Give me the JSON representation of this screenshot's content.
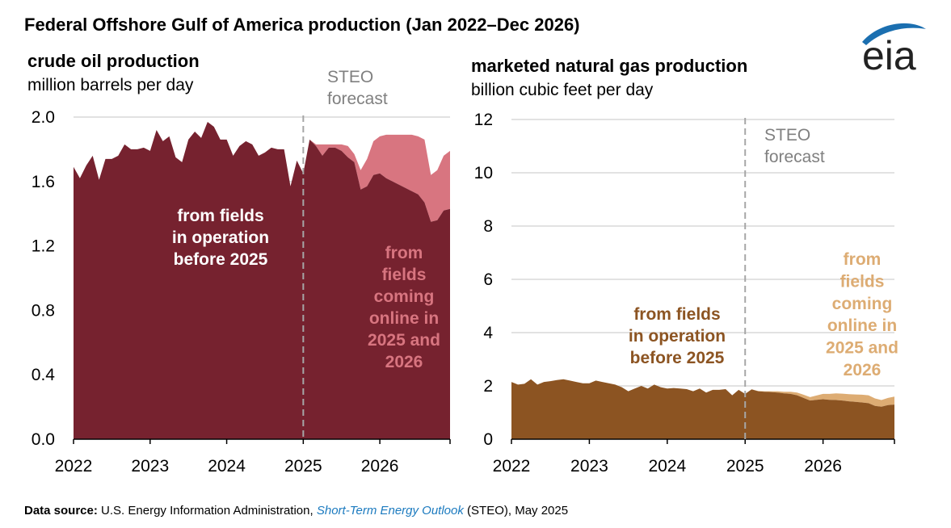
{
  "title": "Federal Offshore Gulf of America production (Jan 2022–Dec 2026)",
  "logo": {
    "text": "eia",
    "color": "#1b6fb0"
  },
  "source": {
    "label": "Data source:",
    "text": "U.S. Energy Information Administration,",
    "link": "Short-Term Energy Outlook",
    "suffix": "(STEO), May 2025"
  },
  "colors": {
    "oil_existing": "#76222f",
    "oil_new": "#d87580",
    "gas_existing": "#8c5422",
    "gas_new": "#ddac73",
    "gridline": "#d9d9d9",
    "divider": "#a6a6a6",
    "forecast_text": "#808080"
  },
  "chart_data": [
    {
      "type": "area",
      "stacked": true,
      "title": "crude oil production",
      "subtitle": "million barrels per day",
      "ylim": [
        0,
        2
      ],
      "yticks": [
        "0.0",
        "0.4",
        "0.8",
        "1.2",
        "1.6",
        "2.0"
      ],
      "ytick_values": [
        0,
        0.4,
        0.8,
        1.2,
        1.6,
        2.0
      ],
      "xticks": [
        "2022",
        "2023",
        "2024",
        "2025",
        "2026"
      ],
      "x_start": "2022-01",
      "x_end": "2026-12",
      "forecast_start_label": "2025",
      "forecast_label_line1": "STEO",
      "forecast_label_line2": "forecast",
      "series": [
        {
          "name": "from fields in operation before 2025",
          "label_lines": [
            "from fields",
            "in operation",
            "before 2025"
          ],
          "values": [
            1.69,
            1.62,
            1.7,
            1.76,
            1.61,
            1.74,
            1.74,
            1.76,
            1.83,
            1.8,
            1.8,
            1.81,
            1.79,
            1.92,
            1.85,
            1.88,
            1.75,
            1.72,
            1.86,
            1.91,
            1.87,
            1.97,
            1.94,
            1.86,
            1.86,
            1.76,
            1.82,
            1.85,
            1.83,
            1.76,
            1.78,
            1.81,
            1.8,
            1.8,
            1.57,
            1.73,
            1.65,
            1.86,
            1.82,
            1.76,
            1.81,
            1.81,
            1.79,
            1.75,
            1.72,
            1.55,
            1.57,
            1.64,
            1.65,
            1.62,
            1.6,
            1.58,
            1.56,
            1.54,
            1.52,
            1.47,
            1.35,
            1.36,
            1.42,
            1.43
          ]
        },
        {
          "name": "from fields coming online in 2025 and 2026",
          "label_lines": [
            "from",
            "fields",
            "coming",
            "online in",
            "2025 and",
            "2026"
          ],
          "values": [
            0,
            0,
            0,
            0,
            0,
            0,
            0,
            0,
            0,
            0,
            0,
            0,
            0,
            0,
            0,
            0,
            0,
            0,
            0,
            0,
            0,
            0,
            0,
            0,
            0,
            0,
            0,
            0,
            0,
            0,
            0,
            0,
            0,
            0,
            0,
            0,
            0,
            0,
            0.01,
            0.07,
            0.02,
            0.02,
            0.04,
            0.07,
            0.05,
            0.12,
            0.17,
            0.21,
            0.23,
            0.27,
            0.29,
            0.31,
            0.33,
            0.35,
            0.36,
            0.39,
            0.29,
            0.31,
            0.34,
            0.36
          ]
        }
      ]
    },
    {
      "type": "area",
      "stacked": true,
      "title": "marketed natural gas production",
      "subtitle": "billion cubic feet per day",
      "ylim": [
        0,
        12
      ],
      "yticks": [
        "0",
        "2",
        "4",
        "6",
        "8",
        "10",
        "12"
      ],
      "ytick_values": [
        0,
        2,
        4,
        6,
        8,
        10,
        12
      ],
      "xticks": [
        "2022",
        "2023",
        "2024",
        "2025",
        "2026"
      ],
      "x_start": "2022-01",
      "x_end": "2026-12",
      "forecast_start_label": "2025",
      "forecast_label_line1": "STEO",
      "forecast_label_line2": "forecast",
      "series": [
        {
          "name": "from fields in operation before 2025",
          "label_lines": [
            "from fields",
            "in operation",
            "before 2025"
          ],
          "values": [
            2.15,
            2.05,
            2.08,
            2.25,
            2.05,
            2.15,
            2.18,
            2.22,
            2.25,
            2.2,
            2.15,
            2.1,
            2.1,
            2.2,
            2.15,
            2.1,
            2.05,
            1.95,
            1.8,
            1.9,
            2.0,
            1.9,
            2.05,
            1.95,
            1.9,
            1.92,
            1.9,
            1.88,
            1.8,
            1.9,
            1.75,
            1.85,
            1.85,
            1.88,
            1.65,
            1.85,
            1.7,
            1.87,
            1.8,
            1.78,
            1.77,
            1.75,
            1.72,
            1.7,
            1.65,
            1.55,
            1.45,
            1.48,
            1.5,
            1.48,
            1.47,
            1.45,
            1.42,
            1.4,
            1.38,
            1.35,
            1.25,
            1.22,
            1.28,
            1.3
          ]
        },
        {
          "name": "from fields coming online in 2025 and 2026",
          "label_lines": [
            "from",
            "fields",
            "coming",
            "online in",
            "2025 and",
            "2026"
          ],
          "values": [
            0,
            0,
            0,
            0,
            0,
            0,
            0,
            0,
            0,
            0,
            0,
            0,
            0,
            0,
            0,
            0,
            0,
            0,
            0,
            0,
            0,
            0,
            0,
            0,
            0,
            0,
            0,
            0,
            0,
            0,
            0,
            0,
            0,
            0,
            0,
            0,
            0,
            0,
            0.01,
            0.02,
            0.03,
            0.05,
            0.06,
            0.08,
            0.1,
            0.12,
            0.13,
            0.16,
            0.2,
            0.22,
            0.25,
            0.26,
            0.27,
            0.28,
            0.29,
            0.3,
            0.28,
            0.25,
            0.27,
            0.3
          ]
        }
      ]
    }
  ]
}
